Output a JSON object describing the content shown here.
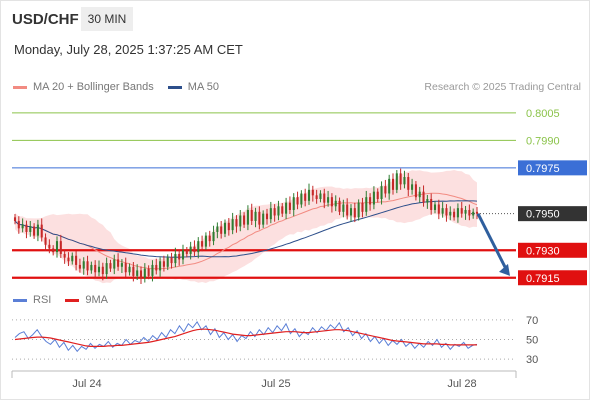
{
  "header": {
    "pair": "USD/CHF",
    "timeframe": "30 MIN",
    "datetime": "Monday, July 28, 2025 1:37:25 AM CET"
  },
  "legend_main": [
    {
      "label": "MA 20 + Bollinger Bands",
      "color": "#f28b82"
    },
    {
      "label": "MA 50",
      "color": "#2d4f8b"
    }
  ],
  "legend_rsi": [
    {
      "label": "RSI",
      "color": "#5b7fd6"
    },
    {
      "label": "9MA",
      "color": "#e02020"
    }
  ],
  "credit": "Research © 2025 Trading Central",
  "colors": {
    "up": "#2e7d32",
    "down": "#c62828",
    "target": "#8bc34a",
    "pivot": "#3b6fd6",
    "support": "#e01010",
    "current": "#333333",
    "arrow": "#2f5f9e"
  },
  "chart_data": [
    {
      "type": "candlestick",
      "title": "USD/CHF 30 MIN",
      "x_ticks": [
        "Jul 24",
        "Jul 25",
        "Jul 28"
      ],
      "ylim": [
        0.79105,
        0.80115
      ],
      "levels": [
        {
          "value": 0.8005,
          "label": "0.8005",
          "kind": "target"
        },
        {
          "value": 0.799,
          "label": "0.7990",
          "kind": "target"
        },
        {
          "value": 0.7975,
          "label": "0.7975",
          "kind": "pivot"
        },
        {
          "value": 0.795,
          "label": "0.7950",
          "kind": "current"
        },
        {
          "value": 0.793,
          "label": "0.7930",
          "kind": "support"
        },
        {
          "value": 0.7915,
          "label": "0.7915",
          "kind": "support"
        }
      ],
      "close": [
        0.7946,
        0.7942,
        0.7944,
        0.794,
        0.7943,
        0.7938,
        0.7944,
        0.7937,
        0.7933,
        0.7931,
        0.7929,
        0.7935,
        0.7928,
        0.7926,
        0.7924,
        0.7927,
        0.7922,
        0.792,
        0.7924,
        0.7919,
        0.7922,
        0.7918,
        0.7921,
        0.7917,
        0.7923,
        0.792,
        0.7925,
        0.7921,
        0.7923,
        0.7918,
        0.7921,
        0.7916,
        0.7919,
        0.7915,
        0.792,
        0.7916,
        0.7922,
        0.7919,
        0.7924,
        0.7921,
        0.7926,
        0.7923,
        0.7928,
        0.7925,
        0.793,
        0.7928,
        0.7932,
        0.7929,
        0.7935,
        0.7932,
        0.7938,
        0.7935,
        0.794,
        0.7943,
        0.7939,
        0.7945,
        0.7941,
        0.7947,
        0.7943,
        0.7949,
        0.7944,
        0.7952,
        0.7946,
        0.7951,
        0.7944,
        0.795,
        0.7947,
        0.7953,
        0.7949,
        0.7954,
        0.795,
        0.7956,
        0.7952,
        0.7959,
        0.7955,
        0.7961,
        0.7957,
        0.7963,
        0.796,
        0.7958,
        0.7961,
        0.7956,
        0.7959,
        0.7954,
        0.7957,
        0.7951,
        0.7955,
        0.7949,
        0.7953,
        0.7948,
        0.7956,
        0.7951,
        0.7959,
        0.7955,
        0.7962,
        0.7958,
        0.7965,
        0.7961,
        0.7969,
        0.7963,
        0.7972,
        0.7966,
        0.797,
        0.7963,
        0.7966,
        0.7959,
        0.7962,
        0.7956,
        0.7958,
        0.7952,
        0.7955,
        0.795,
        0.7953,
        0.7949,
        0.7951,
        0.7948,
        0.7953,
        0.795,
        0.7952,
        0.7949,
        0.7951,
        0.795
      ],
      "rsi": {
        "ylim": [
          25,
          75
        ],
        "y_ticks": [
          70,
          50,
          30
        ],
        "rsi_values": [
          52,
          56,
          58,
          51,
          55,
          60,
          53,
          48,
          45,
          50,
          42,
          47,
          39,
          44,
          38,
          43,
          40,
          46,
          41,
          45,
          43,
          48,
          42,
          46,
          44,
          50,
          45,
          49,
          47,
          52,
          48,
          54,
          50,
          57,
          52,
          60,
          56,
          64,
          58,
          66,
          62,
          68,
          60,
          64,
          55,
          61,
          52,
          57,
          50,
          55,
          48,
          54,
          51,
          58,
          53,
          60,
          55,
          62,
          57,
          64,
          59,
          66,
          56,
          61,
          53,
          58,
          55,
          62,
          57,
          63,
          59,
          65,
          61,
          67,
          58,
          62,
          54,
          59,
          51,
          56,
          48,
          53,
          46,
          51,
          44,
          49,
          45,
          50,
          43,
          47,
          41,
          46,
          42,
          48,
          44,
          50,
          42,
          46,
          40,
          45,
          43,
          47,
          41,
          44,
          45
        ],
        "ma9_values": [
          50,
          50.5,
          51,
          51.5,
          52,
          52.5,
          52.5,
          52,
          51.5,
          50.5,
          49.5,
          48.5,
          47.5,
          46.5,
          45.5,
          44.5,
          43.5,
          43,
          43,
          43,
          43,
          43.5,
          43.5,
          44,
          44,
          44.5,
          45,
          45.5,
          46,
          46.5,
          47,
          48,
          49,
          50,
          51,
          52,
          53,
          54.5,
          56,
          57.5,
          59,
          60,
          60.5,
          60.5,
          60,
          59.5,
          58.5,
          57.5,
          56.5,
          55.5,
          55,
          54.5,
          54,
          54,
          54.5,
          55,
          55.5,
          56,
          56.5,
          57,
          57.5,
          58,
          58,
          58,
          57.5,
          57,
          57,
          57.5,
          58,
          58.5,
          59,
          59.5,
          60,
          60,
          59.5,
          59,
          58,
          57,
          56,
          55,
          54,
          53,
          52,
          51,
          50,
          49,
          48.5,
          48,
          47.5,
          47,
          46.5,
          46,
          45.5,
          45.5,
          45.5,
          45.5,
          45,
          45,
          44.5,
          44.5,
          44.5,
          44.5,
          44.5,
          44.5,
          44.5
        ]
      }
    }
  ]
}
